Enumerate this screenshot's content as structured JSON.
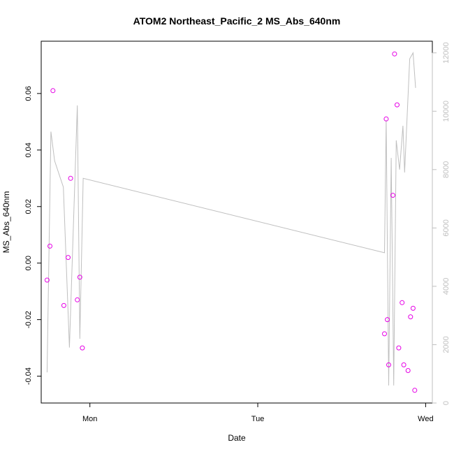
{
  "chart_data": {
    "type": "scatter",
    "title": "ATOM2 Northeast_Pacific_2 MS_Abs_640nm",
    "xlabel": "Date",
    "ylabel": "MS_Abs_640nm",
    "x_axis": {
      "ticks": [
        {
          "label": "Mon",
          "value": 1.0
        },
        {
          "label": "Tue",
          "value": 2.0
        },
        {
          "label": "Wed",
          "value": 3.0
        }
      ],
      "range": [
        0.71,
        3.04
      ]
    },
    "y_axis": {
      "range": [
        -0.0495,
        0.0785
      ],
      "ticks": [
        -0.04,
        -0.02,
        0.0,
        0.02,
        0.04,
        0.06
      ],
      "tick_labels": [
        "-0.04",
        "-0.02",
        "0.00",
        "0.02",
        "0.04",
        "0.06"
      ]
    },
    "y2_axis": {
      "range": [
        0,
        12400
      ],
      "ticks": [
        0,
        2000,
        4000,
        6000,
        8000,
        10000,
        12000
      ],
      "tick_labels": [
        "0",
        "2000",
        "4000",
        "6000",
        "8000",
        "10000",
        "12000"
      ],
      "color": "#bfbfbf"
    },
    "grid": false,
    "series": [
      {
        "kind": "points",
        "color": "#e600e6",
        "points": [
          {
            "x": 0.745,
            "y": -0.006
          },
          {
            "x": 0.762,
            "y": 0.006
          },
          {
            "x": 0.78,
            "y": 0.061
          },
          {
            "x": 0.845,
            "y": -0.015
          },
          {
            "x": 0.87,
            "y": 0.002
          },
          {
            "x": 0.885,
            "y": 0.03
          },
          {
            "x": 0.925,
            "y": -0.013
          },
          {
            "x": 0.94,
            "y": -0.005
          },
          {
            "x": 0.955,
            "y": -0.03
          },
          {
            "x": 2.755,
            "y": -0.025
          },
          {
            "x": 2.765,
            "y": 0.051
          },
          {
            "x": 2.772,
            "y": -0.02
          },
          {
            "x": 2.78,
            "y": -0.036
          },
          {
            "x": 2.805,
            "y": 0.024
          },
          {
            "x": 2.815,
            "y": 0.074
          },
          {
            "x": 2.83,
            "y": 0.056
          },
          {
            "x": 2.84,
            "y": -0.03
          },
          {
            "x": 2.86,
            "y": -0.014
          },
          {
            "x": 2.87,
            "y": -0.036
          },
          {
            "x": 2.895,
            "y": -0.038
          },
          {
            "x": 2.91,
            "y": -0.019
          },
          {
            "x": 2.925,
            "y": -0.016
          },
          {
            "x": 2.935,
            "y": -0.045
          }
        ]
      },
      {
        "kind": "line",
        "axis": "right",
        "color": "#bfbfbf",
        "points": [
          {
            "x": 0.745,
            "y": 1050
          },
          {
            "x": 0.768,
            "y": 9300
          },
          {
            "x": 0.79,
            "y": 8300
          },
          {
            "x": 0.842,
            "y": 7400
          },
          {
            "x": 0.878,
            "y": 1900
          },
          {
            "x": 0.925,
            "y": 10200
          },
          {
            "x": 0.94,
            "y": 2200
          },
          {
            "x": 0.96,
            "y": 7700
          },
          {
            "x": 2.755,
            "y": 5150
          },
          {
            "x": 2.765,
            "y": 9700
          },
          {
            "x": 2.78,
            "y": 600
          },
          {
            "x": 2.795,
            "y": 8400
          },
          {
            "x": 2.81,
            "y": 600
          },
          {
            "x": 2.825,
            "y": 9000
          },
          {
            "x": 2.845,
            "y": 8000
          },
          {
            "x": 2.865,
            "y": 9500
          },
          {
            "x": 2.875,
            "y": 7900
          },
          {
            "x": 2.905,
            "y": 11800
          },
          {
            "x": 2.925,
            "y": 12000
          },
          {
            "x": 2.94,
            "y": 10800
          }
        ]
      }
    ]
  }
}
